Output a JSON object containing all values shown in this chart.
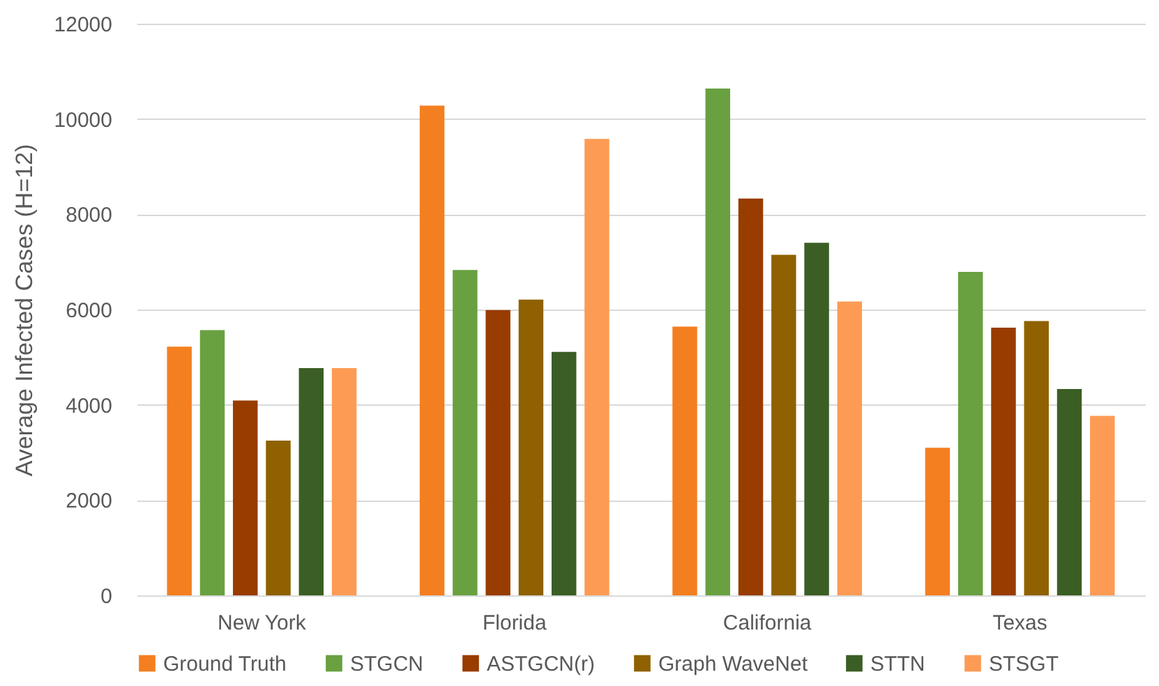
{
  "chart_data": {
    "type": "bar",
    "ylabel": "Average Infected Cases (H=12)",
    "categories": [
      "New York",
      "Florida",
      "California",
      "Texas"
    ],
    "series": [
      {
        "name": "Ground Truth",
        "color": "#f47f20",
        "values": [
          5220,
          10280,
          5640,
          3100
        ]
      },
      {
        "name": "STGCN",
        "color": "#69a040",
        "values": [
          5570,
          6830,
          10640,
          6790
        ]
      },
      {
        "name": "ASTGCN(r)",
        "color": "#983c00",
        "values": [
          4090,
          5990,
          8330,
          5620
        ]
      },
      {
        "name": "Graph WaveNet",
        "color": "#8f6100",
        "values": [
          3250,
          6210,
          7150,
          5760
        ]
      },
      {
        "name": "STTN",
        "color": "#3b5e24",
        "values": [
          4770,
          5110,
          7400,
          4330
        ]
      },
      {
        "name": "STSGT",
        "color": "#fd9b55",
        "values": [
          4770,
          9580,
          6170,
          3770
        ]
      }
    ],
    "ylim": [
      0,
      12000
    ],
    "yticks": [
      0,
      2000,
      4000,
      6000,
      8000,
      10000,
      12000
    ],
    "grid": "y",
    "legend": "bottom"
  }
}
